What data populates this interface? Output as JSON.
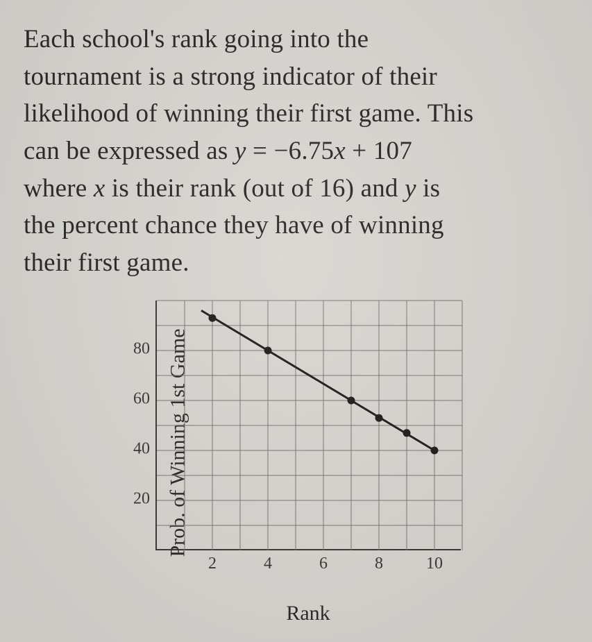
{
  "paragraph": {
    "l1a": "Each school's rank going into the",
    "l2": "tournament is a strong indicator of their",
    "l3": "likelihood of winning their first game.  This",
    "l4a": "can be expressed as ",
    "eq_y": "y",
    "eq_mid": " = −6.75",
    "eq_x": "x",
    "eq_end": " + 107",
    "l5a": " where ",
    "l5b": " is their rank (out of 16) and ",
    "l5c": " is",
    "l6": "the percent chance they have of winning",
    "l7": "their first game."
  },
  "chart": {
    "type": "scatter-with-line",
    "xlabel": "Rank",
    "ylabel": "Prob. of Winning 1st Game",
    "xlim": [
      0,
      11
    ],
    "ylim": [
      0,
      100
    ],
    "xticks": [
      2,
      4,
      6,
      8,
      10
    ],
    "yticks": [
      20,
      40,
      60,
      80
    ],
    "xgrid_step": 1,
    "ygrid_step": 10,
    "background_color": "#d8d6d1",
    "grid_color": "#7a7773",
    "axis_color": "#3a3835",
    "tick_fontsize": 24,
    "label_fontsize": 30,
    "point_color": "#1f1e1c",
    "line_color": "#1f1e1c",
    "line_width": 3,
    "marker_radius": 5.5,
    "points": [
      {
        "x": 2,
        "y": 93
      },
      {
        "x": 4,
        "y": 80
      },
      {
        "x": 7,
        "y": 60
      },
      {
        "x": 8,
        "y": 53
      },
      {
        "x": 9,
        "y": 47
      },
      {
        "x": 10,
        "y": 40
      }
    ],
    "line": {
      "x1": 1.6,
      "y1": 96,
      "x2": 10,
      "y2": 40
    }
  }
}
